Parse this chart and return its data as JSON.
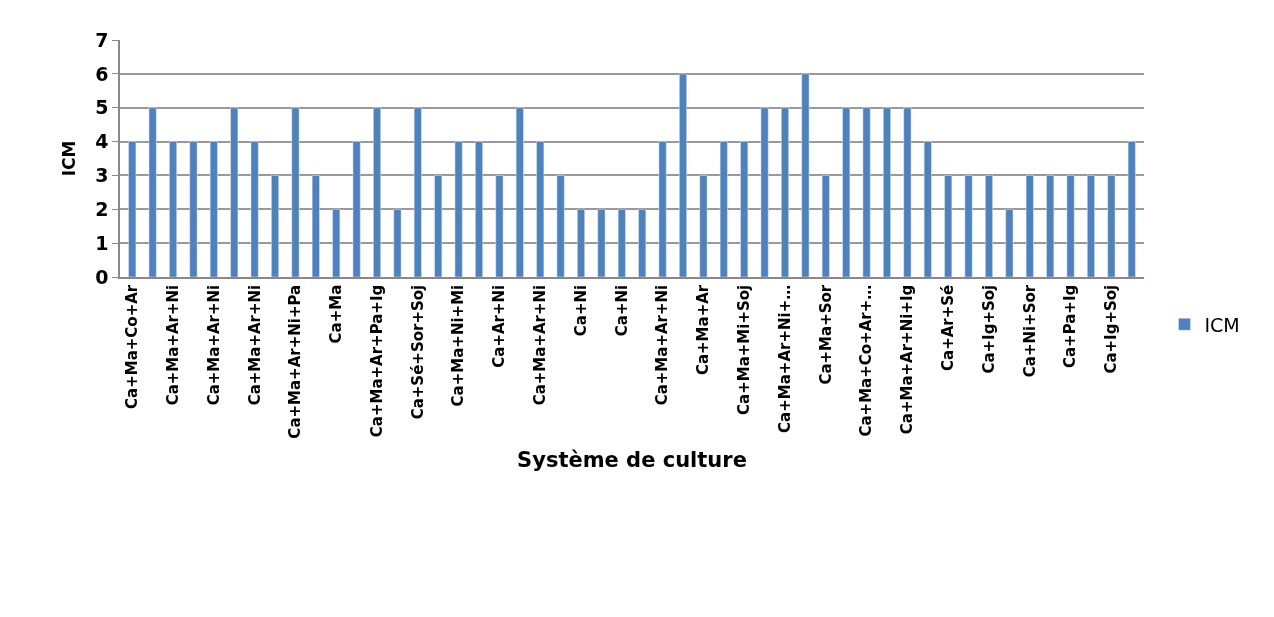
{
  "chart_data": {
    "type": "bar",
    "xlabel": "Système de culture",
    "ylabel": "ICM",
    "categories": [
      "Ca+Ma+Co+Ar",
      null,
      "Ca+Ma+Ar+Ni",
      null,
      "Ca+Ma+Ar+Ni",
      null,
      "Ca+Ma+Ar+Ni",
      null,
      "Ca+Ma+Ar+Ni+Pa",
      null,
      "Ca+Ma",
      null,
      "Ca+Ma+Ar+Pa+Ig",
      null,
      "Ca+Sé+Sor+Soj",
      null,
      "Ca+Ma+Ni+Mi",
      null,
      "Ca+Ar+Ni",
      null,
      "Ca+Ma+Ar+Ni",
      null,
      "Ca+Ni",
      null,
      "Ca+Ni",
      null,
      "Ca+Ma+Ar+Ni",
      null,
      "Ca+Ma+Ar",
      null,
      "Ca+Ma+Mi+Soj",
      null,
      "Ca+Ma+Ar+Ni+…",
      null,
      "Ca+Ma+Sor",
      null,
      "Ca+Ma+Co+Ar+…",
      null,
      "Ca+Ma+Ar+Ni+Ig",
      null,
      "Ca+Ar+Sé",
      null,
      "Ca+Ig+Soj",
      null,
      "Ca+Ni+Sor",
      null,
      "Ca+Pa+Ig",
      null,
      "Ca+Ig+Soj",
      null
    ],
    "series": [
      {
        "name": "ICM",
        "color": "#4f81bd",
        "values": [
          4,
          5,
          4,
          4,
          4,
          5,
          4,
          3,
          5,
          3,
          2,
          4,
          5,
          2,
          5,
          3,
          4,
          4,
          3,
          5,
          4,
          3,
          2,
          2,
          2,
          2,
          4,
          6,
          3,
          4,
          4,
          5,
          5,
          6,
          3,
          5,
          5,
          5,
          5,
          4,
          3,
          3,
          3,
          2,
          3,
          3,
          3,
          3,
          3,
          4
        ]
      }
    ],
    "ylim": [
      0,
      7
    ],
    "yticks": [
      0,
      1,
      2,
      3,
      4,
      5,
      6,
      7
    ],
    "grid": "y",
    "legend": "right"
  }
}
